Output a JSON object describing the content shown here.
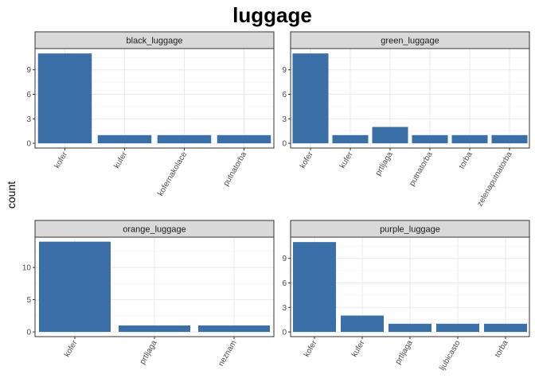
{
  "chart_data": {
    "type": "bar",
    "title": "luggage",
    "xlabel": "",
    "ylabel": "count",
    "bar_color": "#3A6FA8",
    "strip_fill": "#D9D9D9",
    "grid": true,
    "layout": "2x2 facets",
    "panels": [
      {
        "name": "black_luggage",
        "categories": [
          "kofer",
          "kufer",
          "kofernakolace",
          "putnatorba"
        ],
        "values": [
          11,
          1,
          1,
          1
        ],
        "ylim": [
          0,
          11.6
        ],
        "yticks": [
          0,
          3,
          6,
          9
        ]
      },
      {
        "name": "green_luggage",
        "categories": [
          "kofer",
          "kufer",
          "prtljaga",
          "putnatorba",
          "torba",
          "zelenaputnatorba"
        ],
        "values": [
          11,
          1,
          2,
          1,
          1,
          1
        ],
        "ylim": [
          0,
          11.6
        ],
        "yticks": [
          0,
          3,
          6,
          9
        ]
      },
      {
        "name": "orange_luggage",
        "categories": [
          "kofer",
          "prtljaga",
          "neznam"
        ],
        "values": [
          14,
          1,
          1
        ],
        "ylim": [
          0,
          14.7
        ],
        "yticks": [
          0,
          5,
          10
        ]
      },
      {
        "name": "purple_luggage",
        "categories": [
          "kofer",
          "kufer",
          "prtljaga",
          "ljubicasto",
          "torba"
        ],
        "values": [
          11,
          2,
          1,
          1,
          1
        ],
        "ylim": [
          0,
          11.6
        ],
        "yticks": [
          0,
          3,
          6,
          9
        ]
      }
    ]
  }
}
